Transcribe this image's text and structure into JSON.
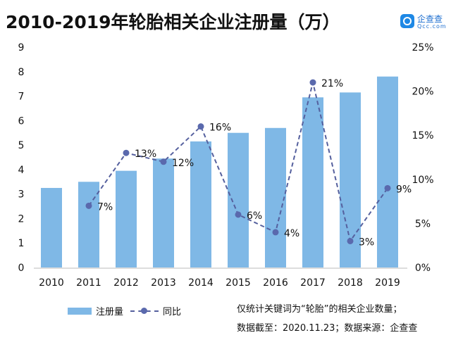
{
  "title": "2010-2019年轮胎相关企业注册量（万）",
  "logo": {
    "name": "企查查",
    "domain": "Qcc.com"
  },
  "notes": [
    "仅统计关键词为“轮胎”的相关企业数量；",
    "数据截至：2020.11.23；数据来源：企查查"
  ],
  "chart_data": {
    "type": "bar",
    "categories": [
      "2010",
      "2011",
      "2012",
      "2013",
      "2014",
      "2015",
      "2016",
      "2017",
      "2018",
      "2019"
    ],
    "series": [
      {
        "name": "注册量",
        "type": "bar",
        "axis": "left",
        "color": "#7fb8e6",
        "values": [
          3.25,
          3.5,
          3.95,
          4.45,
          5.15,
          5.5,
          5.7,
          6.95,
          7.15,
          7.8
        ]
      },
      {
        "name": "同比",
        "type": "line",
        "axis": "right",
        "color": "#55609e",
        "style": "dashed",
        "values": [
          null,
          7,
          13,
          12,
          16,
          6,
          4,
          21,
          3,
          9
        ],
        "labels": [
          null,
          "7%",
          "13%",
          "12%",
          "16%",
          "6%",
          "4%",
          "21%",
          "3%",
          "9%"
        ]
      }
    ],
    "y_left": {
      "range": [
        0,
        9
      ],
      "ticks": [
        "0",
        "1",
        "2",
        "3",
        "4",
        "5",
        "6",
        "7",
        "8",
        "9"
      ]
    },
    "y_right": {
      "range": [
        0,
        25
      ],
      "ticks": [
        "0%",
        "5%",
        "10%",
        "15%",
        "20%",
        "25%"
      ]
    },
    "grid": false,
    "legend": "bottom-left"
  }
}
